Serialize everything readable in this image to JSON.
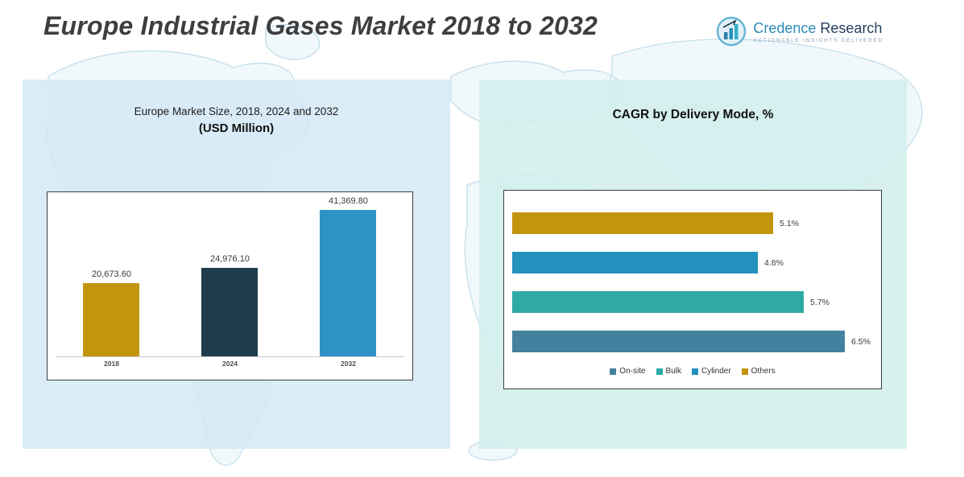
{
  "header": {
    "title": "Europe Industrial Gases Market 2018 to 2032"
  },
  "logo": {
    "brand_primary": "Credence",
    "brand_secondary": "Research",
    "tagline": "Actionable Insights Delivered"
  },
  "colors": {
    "gold": "#C3940E",
    "dark_navy": "#1E3C4E",
    "blue": "#2391BD",
    "teal": "#2EA9A4",
    "steel_blue": "#44819E",
    "panel_left_bg": "#D5EAF4",
    "panel_right_bg": "#D2EEEC"
  },
  "chart_data": [
    {
      "type": "bar",
      "orientation": "vertical",
      "title": "Europe Market Size, 2018, 2024 and 2032",
      "subtitle": "(USD Million)",
      "categories": [
        "2018",
        "2024",
        "2032"
      ],
      "values": [
        20673.6,
        24976.1,
        41369.8
      ],
      "value_labels": [
        "20,673.60",
        "24,976.10",
        "41,369.80"
      ],
      "colors": [
        "#C3940E",
        "#1E3C4E",
        "#2E93C4"
      ],
      "ylim": [
        0,
        41369.8
      ],
      "grid": false,
      "legend_position": "none"
    },
    {
      "type": "bar",
      "orientation": "horizontal",
      "title": "CAGR by Delivery Mode, %",
      "values": [
        5.1,
        4.8,
        5.7,
        6.5
      ],
      "value_labels": [
        "5.1%",
        "4.8%",
        "5.7%",
        "6.5%"
      ],
      "colors": [
        "#C3940E",
        "#2391BD",
        "#2EA9A4",
        "#44819E"
      ],
      "xlim": [
        0,
        6.5
      ],
      "grid": false,
      "legend_position": "bottom",
      "legend": [
        {
          "label": "On-site",
          "color": "#44819E"
        },
        {
          "label": "Bulk",
          "color": "#2EA9A4"
        },
        {
          "label": "Cylinder",
          "color": "#2391BD"
        },
        {
          "label": "Others",
          "color": "#C3940E"
        }
      ]
    }
  ]
}
